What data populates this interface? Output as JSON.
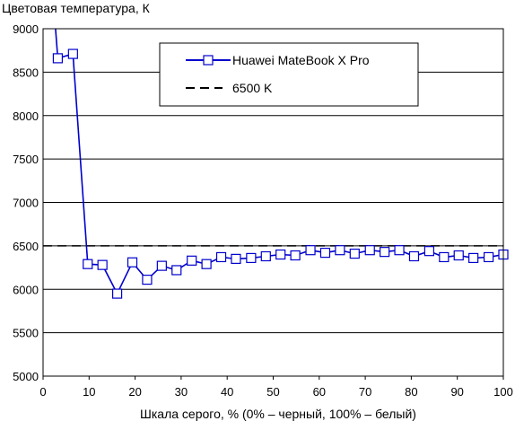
{
  "chart_data": {
    "type": "line",
    "title": "Цветовая температура, К",
    "xlabel": "Шкала серого, % (0% – черный, 100% – белый)",
    "ylabel": "",
    "xlim": [
      0,
      100
    ],
    "ylim": [
      5000,
      9000
    ],
    "x_ticks": [
      "0",
      "10",
      "20",
      "30",
      "40",
      "50",
      "60",
      "70",
      "80",
      "90",
      "100"
    ],
    "y_ticks": [
      "5000",
      "5500",
      "6000",
      "6500",
      "7000",
      "7500",
      "8000",
      "8500",
      "9000"
    ],
    "grid": "horizontal",
    "legend_position": "top-right",
    "series": [
      {
        "name": "Huawei MateBook X Pro",
        "color": "#0000cc",
        "marker": "square",
        "line_style": "solid",
        "x": [
          3.2,
          6.5,
          9.7,
          12.9,
          16.1,
          19.4,
          22.6,
          25.8,
          29.0,
          32.3,
          35.5,
          38.7,
          41.9,
          45.2,
          48.4,
          51.6,
          54.8,
          58.1,
          61.3,
          64.5,
          67.7,
          71.0,
          74.2,
          77.4,
          80.6,
          83.9,
          87.1,
          90.3,
          93.5,
          96.8,
          100
        ],
        "y": [
          8660,
          8710,
          6290,
          6280,
          5950,
          6310,
          6110,
          6270,
          6220,
          6330,
          6290,
          6370,
          6350,
          6360,
          6380,
          6400,
          6390,
          6450,
          6420,
          6450,
          6410,
          6450,
          6430,
          6450,
          6380,
          6440,
          6370,
          6390,
          6360,
          6370,
          6400
        ],
        "line_start": {
          "x": 2.7,
          "y": 9000
        }
      },
      {
        "name": "6500 K",
        "color": "#000000",
        "line_style": "dashed",
        "x": [
          0,
          100
        ],
        "y": [
          6500,
          6500
        ]
      }
    ]
  }
}
